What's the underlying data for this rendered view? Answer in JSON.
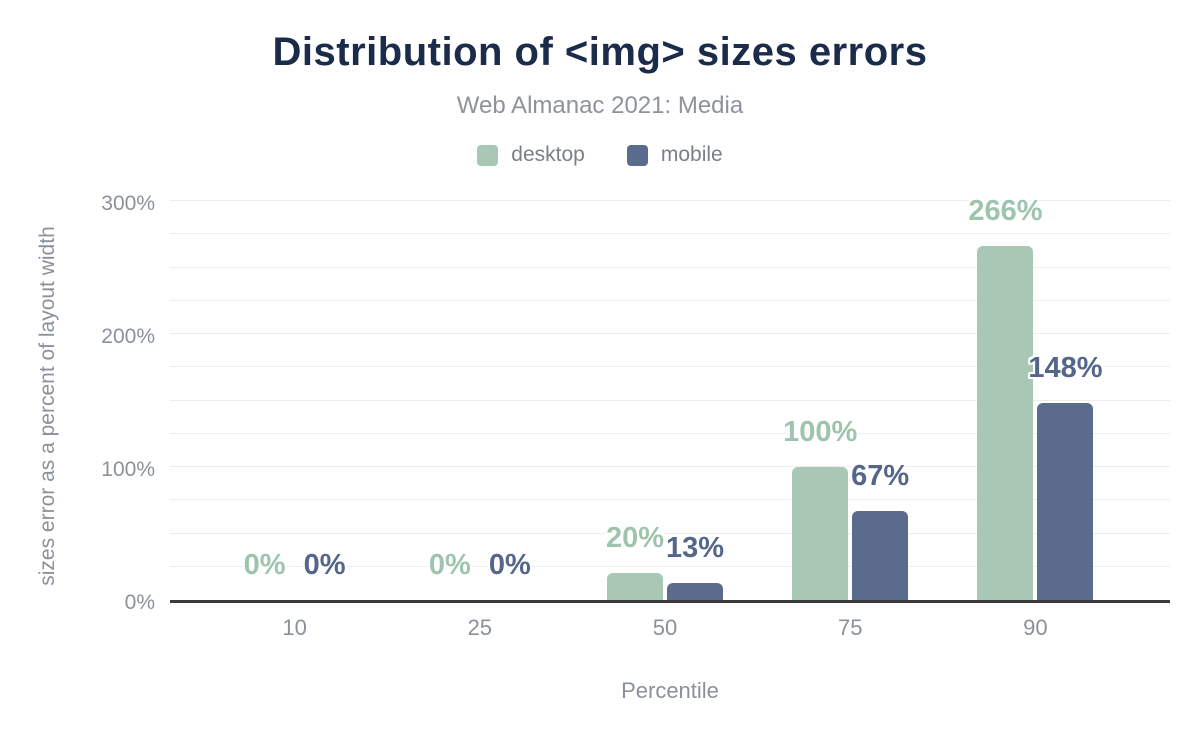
{
  "chart_data": {
    "type": "bar",
    "title": "Distribution of <img> sizes errors",
    "subtitle": "Web Almanac 2021: Media",
    "xlabel": "Percentile",
    "ylabel": "sizes error as a percent of layout width",
    "categories": [
      "10",
      "25",
      "50",
      "75",
      "90"
    ],
    "series": [
      {
        "name": "desktop",
        "color": "#a8c8b5",
        "label_color": "#9fc4ae",
        "values": [
          0,
          0,
          20,
          100,
          266
        ],
        "labels": [
          "0%",
          "0%",
          "20%",
          "100%",
          "266%"
        ]
      },
      {
        "name": "mobile",
        "color": "#5a6b8e",
        "label_color": "#54668a",
        "values": [
          0,
          0,
          13,
          67,
          148
        ],
        "labels": [
          "0%",
          "0%",
          "13%",
          "67%",
          "148%"
        ]
      }
    ],
    "value_suffix": "%",
    "ylim": [
      0,
      300
    ],
    "y_ticks": [
      {
        "value": 0,
        "label": "0%"
      },
      {
        "value": 100,
        "label": "100%"
      },
      {
        "value": 200,
        "label": "200%"
      },
      {
        "value": 300,
        "label": "300%"
      }
    ],
    "grid_interval": 25,
    "grid_on": true,
    "legend_position": "top"
  },
  "styles": {
    "background": "#ffffff",
    "title_color": "#1b2b4a",
    "subtitle_color": "#8e9399",
    "legend_text_color": "#7b8086",
    "axis_line_color": "#3a3a3a",
    "gridline_color": "#ededed",
    "tick_text_color": "#8b9198"
  }
}
